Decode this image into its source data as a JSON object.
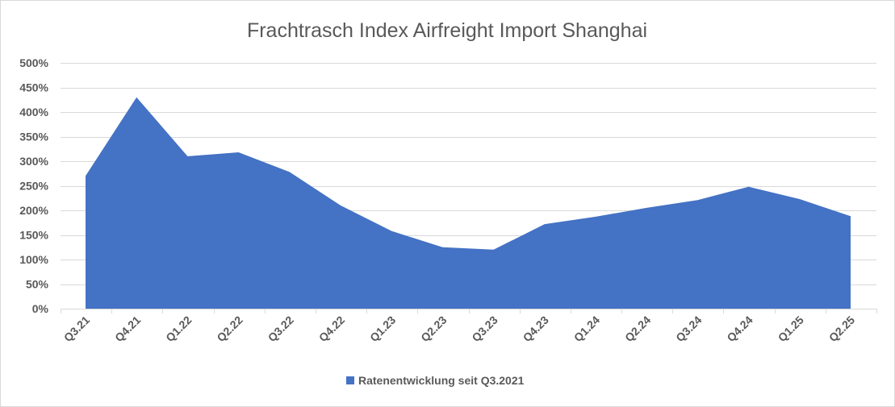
{
  "chart_data": {
    "type": "area",
    "title": "Frachtrasch  Index Airfreight Import Shanghai",
    "xlabel": "",
    "ylabel": "",
    "categories": [
      "Q3.21",
      "Q4.21",
      "Q1.22",
      "Q2.22",
      "Q3.22",
      "Q4.22",
      "Q1.23",
      "Q2.23",
      "Q3.23",
      "Q4.23",
      "Q1.24",
      "Q2.24",
      "Q3.24",
      "Q4.24",
      "Q1.25",
      "Q2.25"
    ],
    "series": [
      {
        "name": "Ratenentwicklung seit Q3.2021",
        "values": [
          270,
          430,
          310,
          318,
          278,
          210,
          158,
          125,
          120,
          172,
          187,
          205,
          221,
          248,
          223,
          188
        ],
        "color": "#4472c4"
      }
    ],
    "ylim": [
      0,
      500
    ],
    "yticks": [
      0,
      50,
      100,
      150,
      200,
      250,
      300,
      350,
      400,
      450,
      500
    ],
    "y_tick_labels": [
      "0%",
      "50%",
      "100%",
      "150%",
      "200%",
      "250%",
      "300%",
      "350%",
      "400%",
      "450%",
      "500%"
    ],
    "y_unit": "%",
    "grid": true,
    "legend_position": "bottom"
  }
}
